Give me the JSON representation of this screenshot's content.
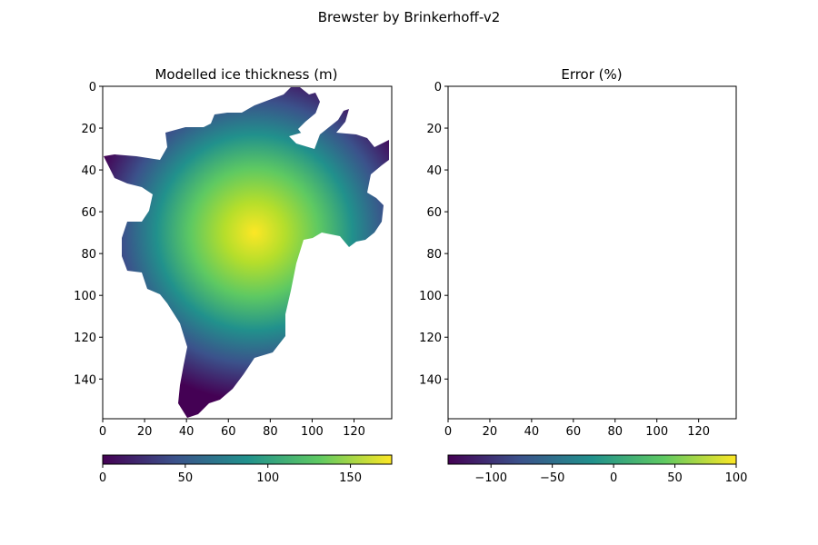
{
  "suptitle": "Brewster by Brinkerhoff-v2",
  "chart_data": [
    {
      "type": "heatmap",
      "title": "Modelled ice thickness (m)",
      "xlim": [
        0,
        138
      ],
      "ylim": [
        159,
        0
      ],
      "xticks": [
        "0",
        "20",
        "40",
        "60",
        "80",
        "100",
        "120"
      ],
      "yticks": [
        "0",
        "20",
        "40",
        "60",
        "80",
        "100",
        "120",
        "140"
      ],
      "colormap": "viridis",
      "colorbar": {
        "vmin": 0,
        "vmax": 175,
        "ticks": [
          "0",
          "50",
          "100",
          "150"
        ]
      },
      "max_thickness_center": {
        "x": 72,
        "y": 70,
        "value": 175
      }
    },
    {
      "type": "heatmap",
      "title": "Error (%)",
      "xlim": [
        0,
        138
      ],
      "ylim": [
        159,
        0
      ],
      "xticks": [
        "0",
        "20",
        "40",
        "60",
        "80",
        "100",
        "120"
      ],
      "yticks": [
        "0",
        "20",
        "40",
        "60",
        "80",
        "100",
        "120",
        "140"
      ],
      "colormap": "viridis",
      "empty": true,
      "colorbar": {
        "vmin": -135,
        "vmax": 100,
        "ticks": [
          "−100",
          "−50",
          "0",
          "50",
          "100"
        ]
      }
    }
  ],
  "colors": {
    "viridis": [
      "#440154",
      "#3b528b",
      "#21918c",
      "#5ec962",
      "#fde725"
    ]
  }
}
